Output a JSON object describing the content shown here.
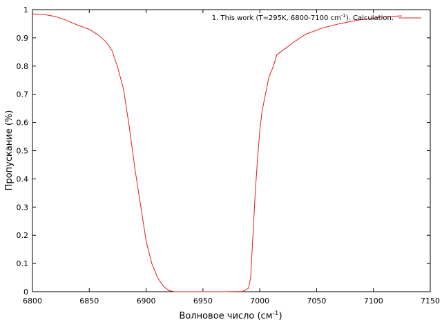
{
  "chart_data": {
    "type": "line",
    "title": "",
    "xlabel": "Волновое число (см",
    "xlabel_sup": "-1",
    "xlabel_end": ")",
    "ylabel": "Пропускание (%)",
    "xlim": [
      6800,
      7150
    ],
    "ylim": [
      0,
      1
    ],
    "x_ticks": [
      6800,
      6850,
      6900,
      6950,
      7000,
      7050,
      7100,
      7150
    ],
    "y_ticks": [
      0,
      0.1,
      0.2,
      0.3,
      0.4,
      0.5,
      0.6,
      0.7,
      0.8,
      0.9,
      1
    ],
    "y_tick_labels": [
      "0",
      "0.1",
      "0.2",
      "0.3",
      "0.4",
      "0.5",
      "0.6",
      "0.7",
      "0.8",
      "0.9",
      "1"
    ],
    "grid": false,
    "legend_position": "top-right",
    "legend": {
      "pre": "1. This work (T=295K, 6800-7100 cm",
      "sup": "-1",
      "post": "). Calculation."
    },
    "series": [
      {
        "name": "1. This work (T=295K, 6800-7100 cm-1). Calculation.",
        "color": "#e31a1c",
        "x": [
          6800,
          6810,
          6820,
          6830,
          6840,
          6850,
          6858,
          6865,
          6870,
          6875,
          6880,
          6885,
          6890,
          6895,
          6900,
          6905,
          6910,
          6915,
          6920,
          6925,
          6930,
          6950,
          6970,
          6985,
          6990,
          6992,
          6994,
          6996,
          6998,
          7000,
          7002,
          7005,
          7008,
          7012,
          7015,
          7020,
          7025,
          7030,
          7040,
          7055,
          7070,
          7085,
          7100,
          7110,
          7120,
          7125
        ],
        "y": [
          0.985,
          0.983,
          0.976,
          0.962,
          0.945,
          0.93,
          0.91,
          0.885,
          0.855,
          0.795,
          0.72,
          0.59,
          0.44,
          0.31,
          0.18,
          0.1,
          0.05,
          0.02,
          0.004,
          0.0,
          0.0,
          0.0,
          0.0,
          0.001,
          0.012,
          0.05,
          0.2,
          0.35,
          0.47,
          0.57,
          0.64,
          0.7,
          0.76,
          0.8,
          0.84,
          0.855,
          0.87,
          0.885,
          0.912,
          0.935,
          0.95,
          0.962,
          0.97,
          0.975,
          0.977,
          0.978
        ]
      }
    ]
  }
}
